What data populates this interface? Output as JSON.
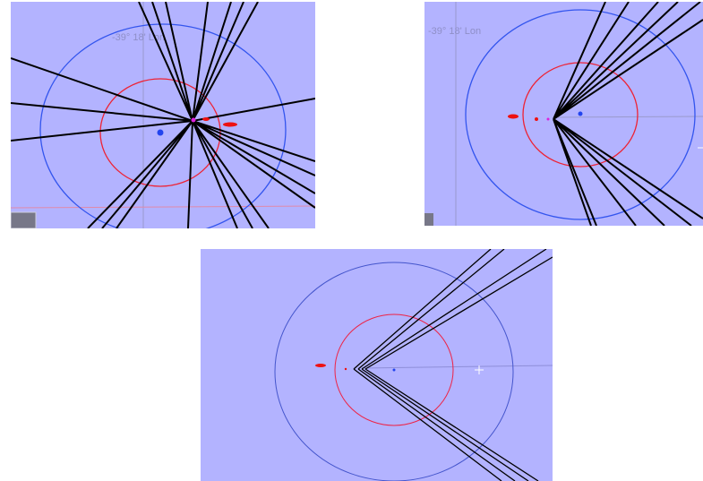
{
  "panels": [
    {
      "label": "-39° 18' Lon"
    },
    {
      "label": "-39° 18' Lon"
    }
  ]
}
